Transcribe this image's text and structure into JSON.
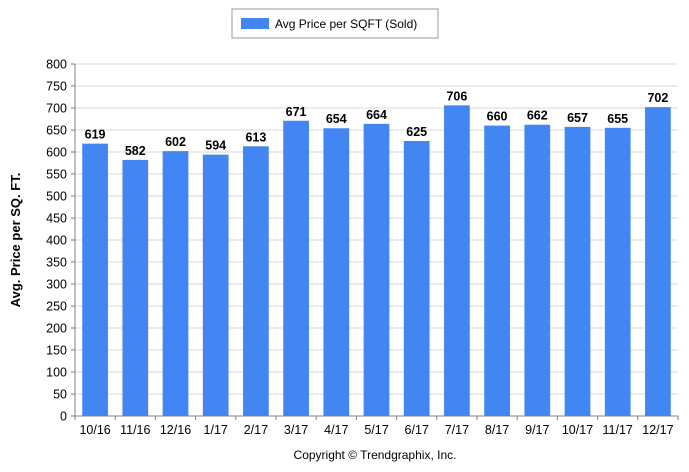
{
  "chart_data": {
    "type": "bar",
    "title": "",
    "xlabel": "",
    "ylabel": "Avg. Price per SQ. FT.",
    "legend": {
      "position": "top-center",
      "items": [
        "Avg Price per SQFT (Sold)"
      ]
    },
    "categories": [
      "10/16",
      "11/16",
      "12/16",
      "1/17",
      "2/17",
      "3/17",
      "4/17",
      "5/17",
      "6/17",
      "7/17",
      "8/17",
      "9/17",
      "10/17",
      "11/17",
      "12/17"
    ],
    "series": [
      {
        "name": "Avg Price per SQFT (Sold)",
        "values": [
          619,
          582,
          602,
          594,
          613,
          671,
          654,
          664,
          625,
          706,
          660,
          662,
          657,
          655,
          702
        ],
        "color": "#4286f4"
      }
    ],
    "ylim": [
      0,
      800
    ],
    "yticks": [
      0,
      50,
      100,
      150,
      200,
      250,
      300,
      350,
      400,
      450,
      500,
      550,
      600,
      650,
      700,
      750,
      800
    ],
    "grid": true,
    "data_labels": true
  },
  "footer": {
    "copyright": "Copyright © Trendgraphix, Inc."
  },
  "colors": {
    "bar": "#4286f4",
    "grid": "#d9d9d9",
    "axis": "#7f7f7f",
    "text": "#000000"
  }
}
